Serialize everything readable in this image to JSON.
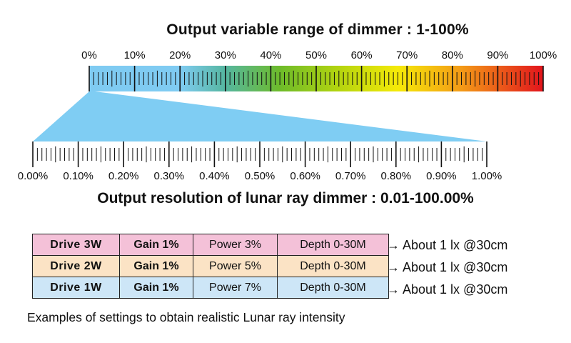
{
  "title_top": "Output variable range of dimmer : 1-100%",
  "title_bottom": "Output resolution of lunar ray dimmer : 0.01-100.00%",
  "top_scale": {
    "labels": [
      "0%",
      "10%",
      "20%",
      "30%",
      "40%",
      "50%",
      "60%",
      "70%",
      "80%",
      "90%",
      "100%"
    ],
    "highlighted_range": [
      0,
      1
    ],
    "gradient_colors": [
      "#7fcbf2",
      "#3ea67a",
      "#7cc01f",
      "#f4e90a",
      "#f39b14",
      "#e2151c"
    ]
  },
  "bottom_scale": {
    "labels": [
      "0.00%",
      "0.10%",
      "0.20%",
      "0.30%",
      "0.40%",
      "0.50%",
      "0.60%",
      "0.70%",
      "0.80%",
      "0.90%",
      "1.00%"
    ],
    "fill_color": "#7fcdf3"
  },
  "settings_rows": [
    {
      "drive": "Drive 3W",
      "gain": "Gain 1%",
      "power": "Power 3%",
      "depth": "Depth 0-30M",
      "result": "→ About 1 lx @30cm",
      "color": "#f4c1d8"
    },
    {
      "drive": "Drive 2W",
      "gain": "Gain 1%",
      "power": "Power 5%",
      "depth": "Depth 0-30M",
      "result": "→ About 1 lx @30cm",
      "color": "#fbe3c5"
    },
    {
      "drive": "Drive 1W",
      "gain": "Gain 1%",
      "power": "Power 7%",
      "depth": "Depth 0-30M",
      "result": "→ About 1 lx @30cm",
      "color": "#cde6f7"
    }
  ],
  "note": "Examples of settings to obtain realistic Lunar ray intensity"
}
